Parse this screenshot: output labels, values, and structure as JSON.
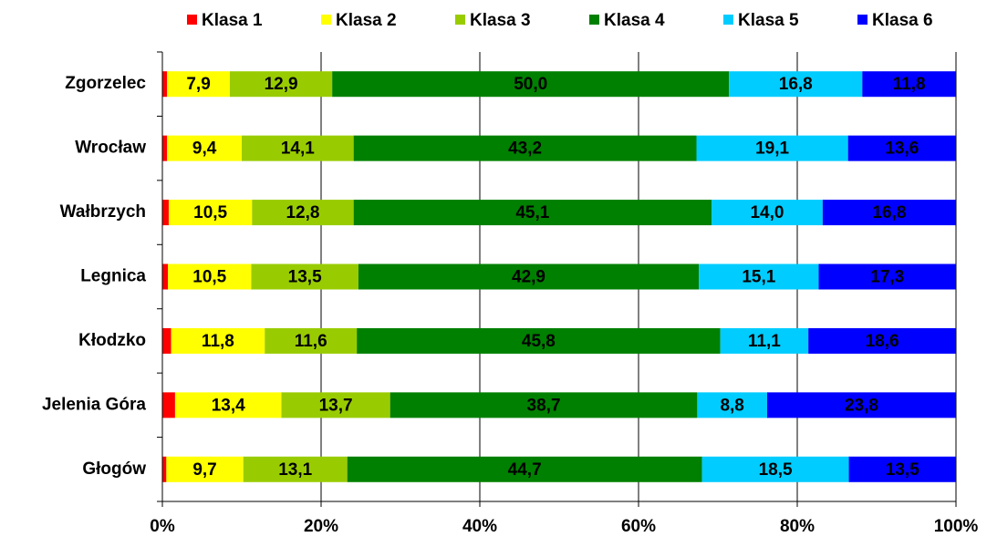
{
  "chart_data": {
    "type": "stacked-bar-horizontal",
    "categories": [
      "Zgorzelec",
      "Wrocław",
      "Wałbrzych",
      "Legnica",
      "Kłodzko",
      "Jelenia Góra",
      "Głogów"
    ],
    "series": [
      {
        "name": "Klasa 1",
        "color": "#ff0000",
        "values": [
          0.6,
          0.6,
          0.8,
          0.7,
          1.1,
          1.6,
          0.5
        ]
      },
      {
        "name": "Klasa 2",
        "color": "#ffff00",
        "values": [
          7.9,
          9.4,
          10.5,
          10.5,
          11.8,
          13.4,
          9.7
        ],
        "value_labels": [
          "7,9",
          "9,4",
          "10,5",
          "10,5",
          "11,8",
          "13,4",
          "9,7"
        ]
      },
      {
        "name": "Klasa 3",
        "color": "#99cc00",
        "values": [
          12.9,
          14.1,
          12.8,
          13.5,
          11.6,
          13.7,
          13.1
        ],
        "value_labels": [
          "12,9",
          "14,1",
          "12,8",
          "13,5",
          "11,6",
          "13,7",
          "13,1"
        ]
      },
      {
        "name": "Klasa 4",
        "color": "#008000",
        "values": [
          50.0,
          43.2,
          45.1,
          42.9,
          45.8,
          38.7,
          44.7
        ],
        "value_labels": [
          "50,0",
          "43,2",
          "45,1",
          "42,9",
          "45,8",
          "38,7",
          "44,7"
        ]
      },
      {
        "name": "Klasa 5",
        "color": "#00ccff",
        "values": [
          16.8,
          19.1,
          14.0,
          15.1,
          11.1,
          8.8,
          18.5
        ],
        "value_labels": [
          "16,8",
          "19,1",
          "14,0",
          "15,1",
          "11,1",
          "8,8",
          "18,5"
        ]
      },
      {
        "name": "Klasa 6",
        "color": "#0000ff",
        "values": [
          11.8,
          13.6,
          16.8,
          17.3,
          18.6,
          23.8,
          13.5
        ],
        "value_labels": [
          "11,8",
          "13,6",
          "16,8",
          "17,3",
          "18,6",
          "23,8",
          "13,5"
        ]
      }
    ],
    "xlim": [
      0,
      100
    ],
    "xticks": [
      {
        "value": 0,
        "label": "0%"
      },
      {
        "value": 20,
        "label": "20%"
      },
      {
        "value": 40,
        "label": "40%"
      },
      {
        "value": 60,
        "label": "60%"
      },
      {
        "value": 80,
        "label": "80%"
      },
      {
        "value": 100,
        "label": "100%"
      }
    ],
    "grid": true,
    "legend": "top"
  }
}
